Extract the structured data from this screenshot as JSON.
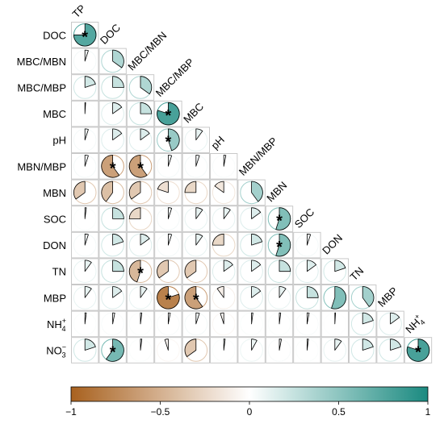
{
  "chart_data": {
    "type": "heatmap",
    "subtype": "lower-triangle correlation matrix with pie glyphs",
    "variables": [
      {
        "name": "TP"
      },
      {
        "name": "DOC"
      },
      {
        "name": "MBC/MBN"
      },
      {
        "name": "MBC/MBP"
      },
      {
        "name": "MBC"
      },
      {
        "name": "pH"
      },
      {
        "name": "MBN/MBP"
      },
      {
        "name": "MBN"
      },
      {
        "name": "SOC"
      },
      {
        "name": "DON"
      },
      {
        "name": "TN"
      },
      {
        "name": "MBP"
      },
      {
        "name": "NH",
        "sub": "4",
        "sup": "+"
      },
      {
        "name": "NO",
        "sub": "3",
        "sup": "−"
      }
    ],
    "significance_marker": "*",
    "correlations": [
      [
        0.75
      ],
      [
        0.05,
        0.35
      ],
      [
        0.2,
        0.25,
        0.35
      ],
      [
        0.01,
        0.15,
        0.25,
        0.8
      ],
      [
        0.05,
        0.15,
        0.15,
        0.45,
        0.1
      ],
      [
        0.05,
        -0.6,
        -0.6,
        0.05,
        0.05,
        0.03
      ],
      [
        -0.35,
        -0.4,
        -0.35,
        -0.2,
        -0.25,
        -0.15,
        0.4
      ],
      [
        0.02,
        0.25,
        -0.25,
        0.05,
        0.1,
        0.1,
        0.15,
        0.55
      ],
      [
        0.05,
        0.2,
        0.15,
        0.05,
        0.1,
        -0.25,
        0.2,
        0.55,
        0.05
      ],
      [
        0.1,
        0.25,
        -0.45,
        -0.35,
        -0.35,
        0.15,
        0.15,
        0.25,
        0.15,
        0.2
      ],
      [
        0.1,
        0.15,
        0.1,
        -0.8,
        -0.6,
        -0.1,
        0.15,
        0.1,
        0.25,
        0.55,
        0.4
      ],
      [
        0.02,
        0.03,
        0.02,
        0.03,
        0.05,
        -0.05,
        0.02,
        0.02,
        0.03,
        0.01,
        0.2,
        0.15
      ],
      [
        0.2,
        0.6,
        0.02,
        -0.05,
        -0.35,
        0.02,
        0.08,
        0.03,
        0.02,
        0.1,
        0.2,
        0.2,
        0.8
      ]
    ],
    "significant": [
      [
        true
      ],
      [
        false,
        false
      ],
      [
        false,
        false,
        false
      ],
      [
        false,
        false,
        false,
        true
      ],
      [
        false,
        false,
        false,
        true,
        false
      ],
      [
        false,
        true,
        true,
        false,
        false,
        false
      ],
      [
        false,
        false,
        false,
        false,
        false,
        false,
        false
      ],
      [
        false,
        false,
        false,
        false,
        false,
        false,
        false,
        true
      ],
      [
        false,
        false,
        false,
        false,
        false,
        false,
        false,
        true,
        false
      ],
      [
        false,
        false,
        true,
        false,
        false,
        false,
        false,
        false,
        false,
        false
      ],
      [
        false,
        false,
        false,
        true,
        true,
        false,
        false,
        false,
        false,
        false,
        false
      ],
      [
        false,
        false,
        false,
        false,
        false,
        false,
        false,
        false,
        false,
        false,
        false,
        false
      ],
      [
        false,
        true,
        false,
        false,
        false,
        false,
        false,
        false,
        false,
        false,
        false,
        false,
        true
      ]
    ],
    "colorbar": {
      "min": -1,
      "max": 1,
      "ticks": [
        "-1",
        "-0.5",
        "0",
        "0.5",
        "1"
      ],
      "color_negative": "#a8611f",
      "color_zero": "#ffffff",
      "color_positive": "#1a8a80",
      "orientation": "horizontal",
      "placement": "bottom"
    }
  }
}
